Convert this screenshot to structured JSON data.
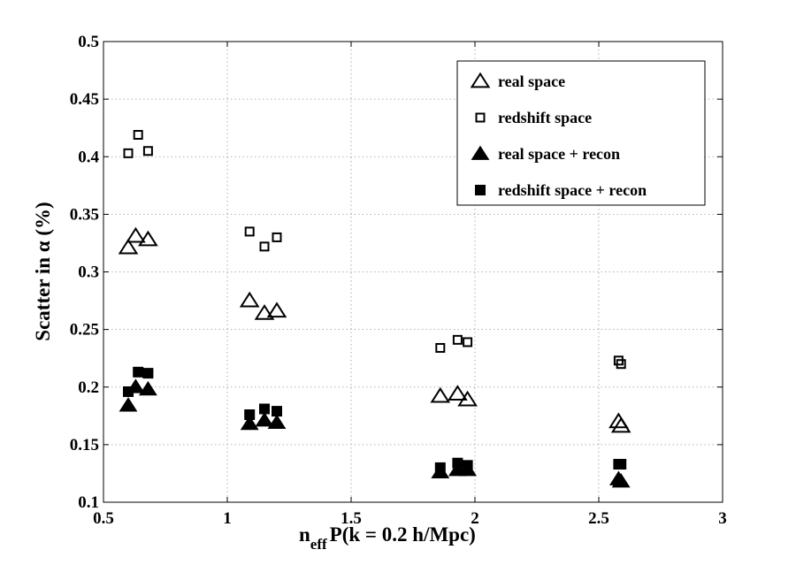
{
  "chart_data": {
    "type": "scatter",
    "title": "",
    "xlabel_main": "n",
    "xlabel_sub": "eff",
    "xlabel_rest": "P(k = 0.2 h/Mpc)",
    "ylabel": "Scatter in α (%)",
    "xlim": [
      0.5,
      3
    ],
    "ylim": [
      0.1,
      0.5
    ],
    "xticks": [
      0.5,
      1,
      1.5,
      2,
      2.5,
      3
    ],
    "xtick_labels": [
      "0.5",
      "1",
      "1.5",
      "2",
      "2.5",
      "3"
    ],
    "yticks": [
      0.1,
      0.15,
      0.2,
      0.25,
      0.3,
      0.35,
      0.4,
      0.45,
      0.5
    ],
    "ytick_labels": [
      "0.1",
      "0.15",
      "0.2",
      "0.25",
      "0.3",
      "0.35",
      "0.4",
      "0.45",
      "0.5"
    ],
    "grid": true,
    "legend_position": "top-right",
    "series": [
      {
        "name": "real space",
        "marker": "triangle-open",
        "points": [
          {
            "x": 0.6,
            "y": 0.321
          },
          {
            "x": 0.63,
            "y": 0.331
          },
          {
            "x": 0.68,
            "y": 0.328
          },
          {
            "x": 1.09,
            "y": 0.275
          },
          {
            "x": 1.15,
            "y": 0.264
          },
          {
            "x": 1.2,
            "y": 0.266
          },
          {
            "x": 1.86,
            "y": 0.192
          },
          {
            "x": 1.93,
            "y": 0.194
          },
          {
            "x": 1.97,
            "y": 0.189
          },
          {
            "x": 2.58,
            "y": 0.17
          },
          {
            "x": 2.59,
            "y": 0.166
          }
        ]
      },
      {
        "name": "redshift space",
        "marker": "square-open",
        "points": [
          {
            "x": 0.6,
            "y": 0.403
          },
          {
            "x": 0.64,
            "y": 0.419
          },
          {
            "x": 0.68,
            "y": 0.405
          },
          {
            "x": 1.09,
            "y": 0.335
          },
          {
            "x": 1.15,
            "y": 0.322
          },
          {
            "x": 1.2,
            "y": 0.33
          },
          {
            "x": 1.86,
            "y": 0.234
          },
          {
            "x": 1.93,
            "y": 0.241
          },
          {
            "x": 1.97,
            "y": 0.239
          },
          {
            "x": 2.58,
            "y": 0.223
          },
          {
            "x": 2.59,
            "y": 0.22
          }
        ]
      },
      {
        "name": "real space + recon",
        "marker": "triangle-filled",
        "points": [
          {
            "x": 0.6,
            "y": 0.184
          },
          {
            "x": 0.63,
            "y": 0.2
          },
          {
            "x": 0.68,
            "y": 0.198
          },
          {
            "x": 1.09,
            "y": 0.168
          },
          {
            "x": 1.15,
            "y": 0.171
          },
          {
            "x": 1.2,
            "y": 0.169
          },
          {
            "x": 1.86,
            "y": 0.126
          },
          {
            "x": 1.93,
            "y": 0.128
          },
          {
            "x": 1.97,
            "y": 0.128
          },
          {
            "x": 2.58,
            "y": 0.12
          },
          {
            "x": 2.59,
            "y": 0.118
          }
        ]
      },
      {
        "name": "redshift space + recon",
        "marker": "square-filled",
        "points": [
          {
            "x": 0.6,
            "y": 0.196
          },
          {
            "x": 0.64,
            "y": 0.213
          },
          {
            "x": 0.68,
            "y": 0.212
          },
          {
            "x": 1.09,
            "y": 0.176
          },
          {
            "x": 1.15,
            "y": 0.181
          },
          {
            "x": 1.2,
            "y": 0.179
          },
          {
            "x": 1.86,
            "y": 0.13
          },
          {
            "x": 1.93,
            "y": 0.134
          },
          {
            "x": 1.97,
            "y": 0.132
          },
          {
            "x": 2.58,
            "y": 0.133
          },
          {
            "x": 2.59,
            "y": 0.133
          }
        ]
      }
    ]
  }
}
